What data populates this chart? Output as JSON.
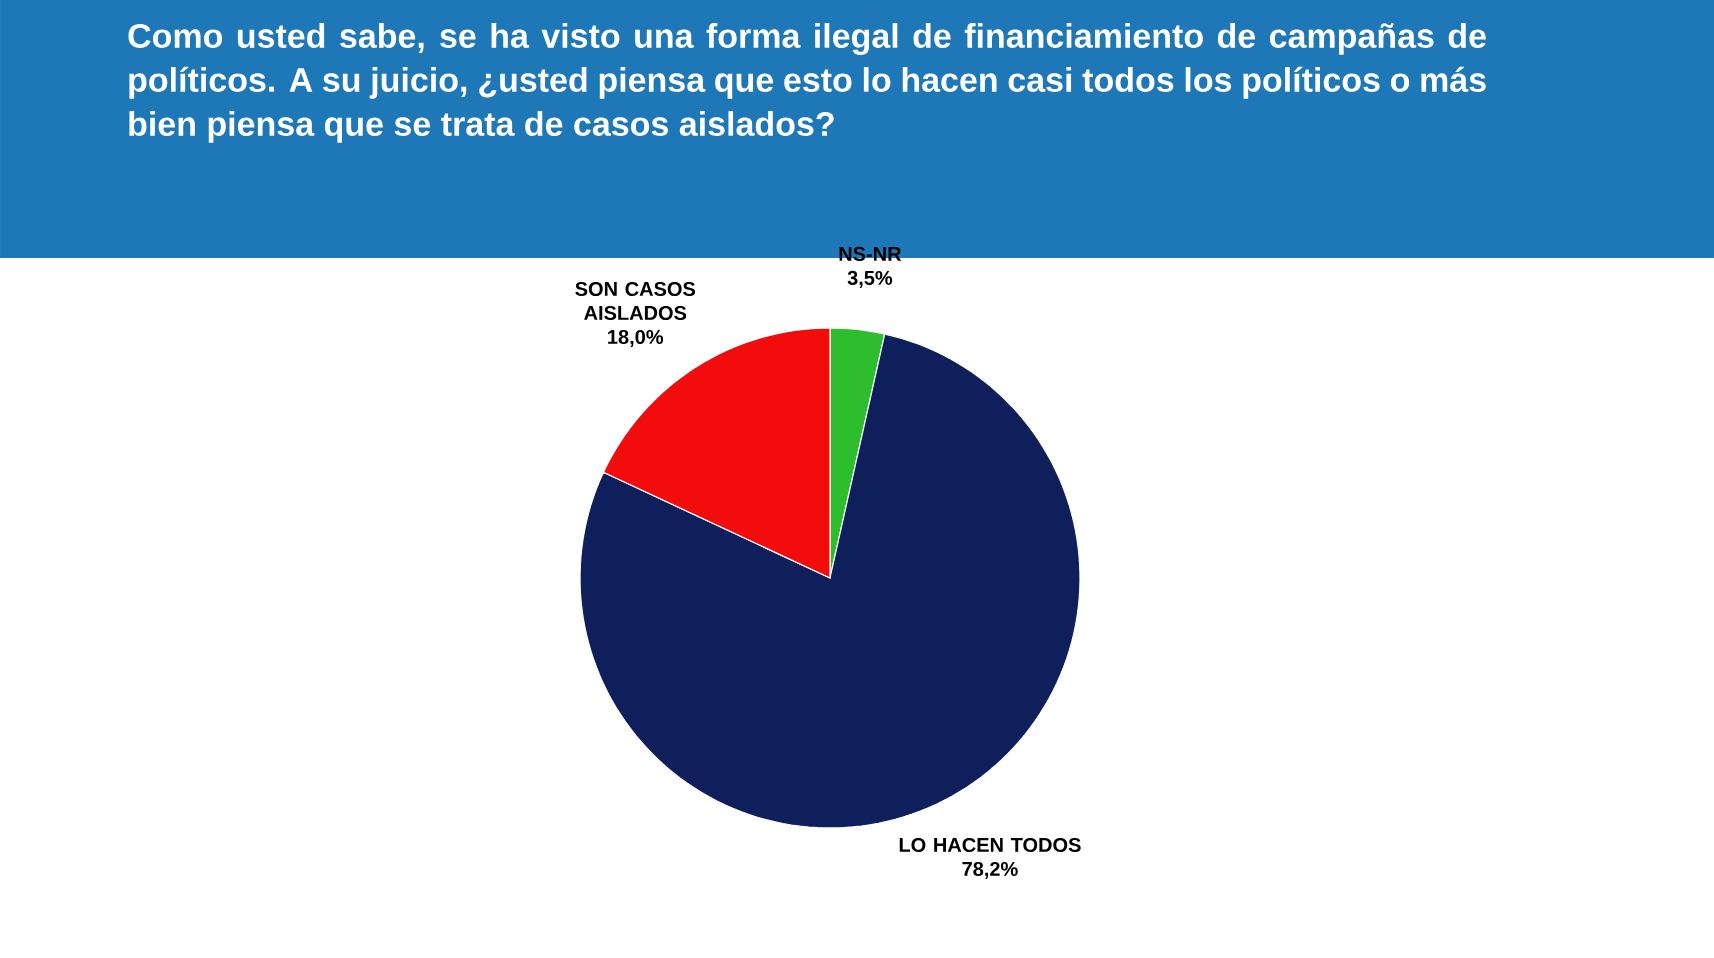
{
  "chart_data": {
    "type": "pie",
    "title": "Como usted sabe, se ha visto una forma ilegal de financiamiento de campañas de políticos. A su juicio, ¿usted piensa que esto lo hacen casi todos los políticos o más bien piensa que se trata de casos aislados?",
    "categories": [
      "NS-NR",
      "LO HACEN TODOS",
      "SON CASOS AISLADOS"
    ],
    "values": [
      3.5,
      78.2,
      18.0
    ],
    "value_labels": [
      "3,5%",
      "78,2%",
      "18,0%"
    ],
    "colors": [
      "#2dbd2d",
      "#0f1f5c",
      "#f20c0c"
    ]
  }
}
